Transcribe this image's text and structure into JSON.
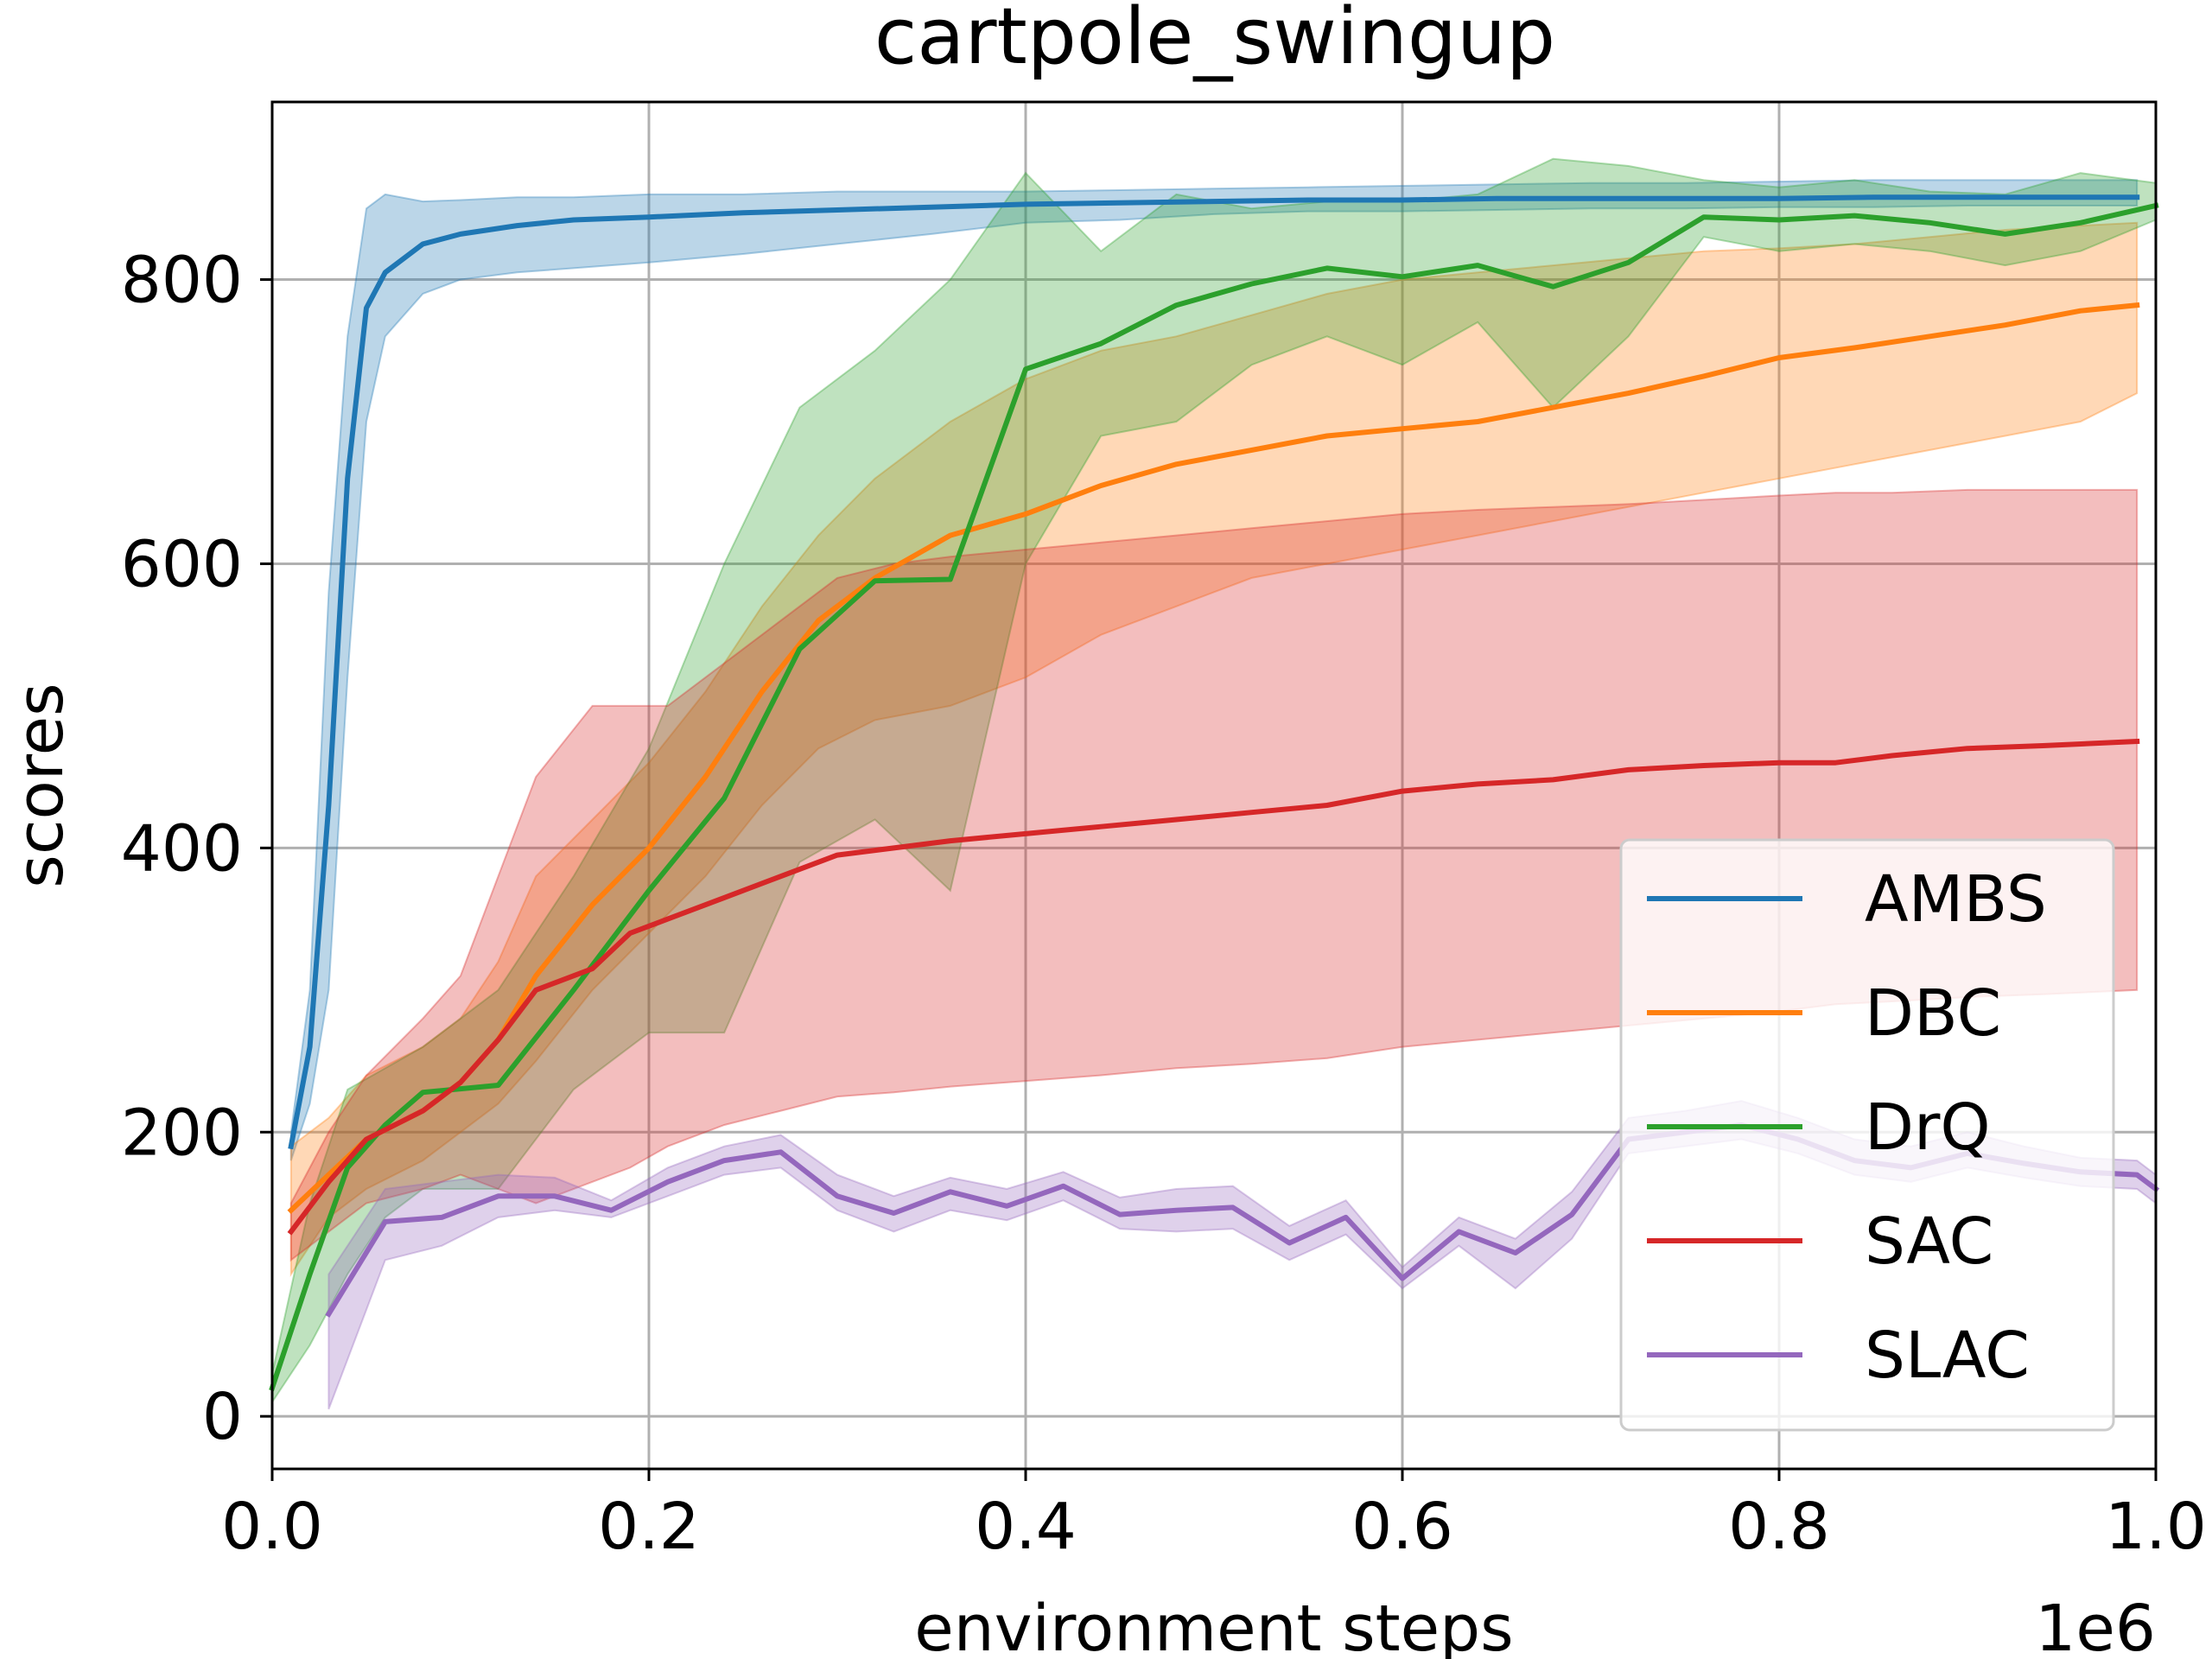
{
  "chart_data": {
    "type": "line",
    "title": "cartpole_swingup",
    "xlabel": "environment steps",
    "ylabel": "scores",
    "x_offset_label": "1e6",
    "xlim": [
      0.0,
      1.0
    ],
    "ylim": [
      -37,
      925
    ],
    "x_ticks": [
      0.0,
      0.2,
      0.4,
      0.6,
      0.8,
      1.0
    ],
    "x_tick_labels": [
      "0.0",
      "0.2",
      "0.4",
      "0.6",
      "0.8",
      "1.0"
    ],
    "y_ticks": [
      0,
      200,
      400,
      600,
      800
    ],
    "y_tick_labels": [
      "0",
      "200",
      "400",
      "600",
      "800"
    ],
    "grid": true,
    "legend_position": "lower-right",
    "series": [
      {
        "name": "AMBS",
        "color": "#1f77b4",
        "x": [
          0.01,
          0.02,
          0.03,
          0.04,
          0.05,
          0.06,
          0.08,
          0.1,
          0.13,
          0.16,
          0.2,
          0.25,
          0.3,
          0.35,
          0.4,
          0.45,
          0.5,
          0.55,
          0.6,
          0.65,
          0.7,
          0.75,
          0.8,
          0.85,
          0.9,
          0.95,
          0.99
        ],
        "y": [
          190,
          260,
          430,
          660,
          780,
          805,
          825,
          832,
          838,
          842,
          844,
          847,
          849,
          851,
          853,
          854,
          855,
          856,
          856,
          857,
          857,
          857,
          857,
          858,
          858,
          858,
          858
        ],
        "lower": [
          180,
          220,
          300,
          520,
          700,
          760,
          790,
          800,
          805,
          808,
          812,
          818,
          825,
          832,
          840,
          842,
          846,
          848,
          848,
          849,
          850,
          850,
          851,
          851,
          852,
          852,
          852
        ],
        "upper": [
          200,
          300,
          580,
          760,
          850,
          860,
          855,
          856,
          858,
          858,
          860,
          860,
          862,
          862,
          862,
          863,
          864,
          865,
          866,
          867,
          868,
          868,
          869,
          870,
          870,
          870,
          870
        ]
      },
      {
        "name": "DBC",
        "color": "#ff7f0e",
        "x": [
          0.01,
          0.03,
          0.05,
          0.08,
          0.1,
          0.12,
          0.14,
          0.17,
          0.2,
          0.23,
          0.26,
          0.29,
          0.32,
          0.36,
          0.4,
          0.44,
          0.48,
          0.52,
          0.56,
          0.6,
          0.64,
          0.68,
          0.72,
          0.76,
          0.8,
          0.84,
          0.88,
          0.92,
          0.96,
          0.99
        ],
        "y": [
          145,
          170,
          195,
          215,
          235,
          265,
          310,
          360,
          400,
          450,
          510,
          560,
          590,
          620,
          635,
          655,
          670,
          680,
          690,
          695,
          700,
          710,
          720,
          732,
          745,
          752,
          760,
          768,
          778,
          782
        ],
        "lower": [
          100,
          140,
          160,
          180,
          200,
          220,
          250,
          300,
          340,
          380,
          430,
          470,
          490,
          500,
          520,
          550,
          570,
          590,
          600,
          610,
          620,
          630,
          640,
          650,
          660,
          670,
          680,
          690,
          700,
          720
        ],
        "upper": [
          190,
          210,
          240,
          260,
          280,
          320,
          380,
          420,
          460,
          510,
          570,
          620,
          660,
          700,
          730,
          750,
          760,
          775,
          790,
          800,
          805,
          810,
          815,
          820,
          822,
          825,
          830,
          835,
          838,
          840
        ]
      },
      {
        "name": "DrQ",
        "color": "#2ca02c",
        "x": [
          0.0,
          0.02,
          0.04,
          0.06,
          0.08,
          0.12,
          0.16,
          0.2,
          0.24,
          0.28,
          0.32,
          0.36,
          0.4,
          0.44,
          0.48,
          0.52,
          0.56,
          0.6,
          0.64,
          0.68,
          0.72,
          0.76,
          0.8,
          0.84,
          0.88,
          0.92,
          0.96,
          1.0
        ],
        "y": [
          20,
          100,
          175,
          205,
          228,
          233,
          300,
          370,
          435,
          540,
          588,
          589,
          737,
          755,
          782,
          797,
          808,
          802,
          810,
          795,
          812,
          844,
          842,
          845,
          840,
          832,
          840,
          852
        ],
        "lower": [
          10,
          50,
          100,
          140,
          160,
          160,
          230,
          270,
          270,
          390,
          420,
          370,
          600,
          690,
          700,
          740,
          760,
          740,
          770,
          710,
          760,
          830,
          820,
          825,
          820,
          810,
          820,
          842
        ],
        "upper": [
          30,
          150,
          230,
          245,
          260,
          300,
          380,
          470,
          600,
          710,
          750,
          800,
          875,
          820,
          860,
          850,
          855,
          855,
          860,
          885,
          880,
          870,
          865,
          870,
          862,
          860,
          875,
          868
        ]
      },
      {
        "name": "SAC",
        "color": "#d62728",
        "x": [
          0.01,
          0.03,
          0.05,
          0.08,
          0.1,
          0.12,
          0.14,
          0.17,
          0.19,
          0.21,
          0.24,
          0.27,
          0.3,
          0.33,
          0.36,
          0.4,
          0.44,
          0.48,
          0.52,
          0.56,
          0.6,
          0.64,
          0.68,
          0.72,
          0.76,
          0.8,
          0.83,
          0.86,
          0.9,
          0.94,
          0.99
        ],
        "y": [
          130,
          165,
          195,
          215,
          235,
          265,
          300,
          315,
          340,
          350,
          365,
          380,
          395,
          400,
          405,
          410,
          415,
          420,
          425,
          430,
          440,
          445,
          448,
          455,
          458,
          460,
          460,
          465,
          470,
          472,
          475
        ],
        "lower": [
          110,
          130,
          150,
          160,
          170,
          160,
          150,
          165,
          175,
          190,
          205,
          215,
          225,
          228,
          232,
          236,
          240,
          245,
          248,
          252,
          260,
          265,
          270,
          275,
          280,
          285,
          290,
          292,
          295,
          297,
          300
        ],
        "upper": [
          150,
          200,
          240,
          280,
          310,
          380,
          450,
          500,
          500,
          500,
          530,
          560,
          590,
          600,
          605,
          610,
          615,
          620,
          625,
          630,
          635,
          638,
          640,
          642,
          645,
          648,
          650,
          650,
          652,
          652,
          652
        ]
      },
      {
        "name": "SLAC",
        "color": "#9467bd",
        "x": [
          0.03,
          0.06,
          0.09,
          0.12,
          0.15,
          0.18,
          0.21,
          0.24,
          0.27,
          0.3,
          0.33,
          0.36,
          0.39,
          0.42,
          0.45,
          0.48,
          0.51,
          0.54,
          0.57,
          0.6,
          0.63,
          0.66,
          0.69,
          0.72,
          0.75,
          0.78,
          0.81,
          0.84,
          0.87,
          0.9,
          0.93,
          0.96,
          0.99,
          1.0
        ],
        "y": [
          72,
          137,
          140,
          155,
          155,
          145,
          165,
          180,
          186,
          155,
          143,
          158,
          148,
          162,
          142,
          145,
          147,
          122,
          140,
          97,
          130,
          115,
          142,
          195,
          200,
          205,
          195,
          180,
          175,
          185,
          178,
          172,
          170,
          160
        ],
        "lower": [
          5,
          110,
          120,
          140,
          145,
          140,
          155,
          170,
          175,
          145,
          130,
          145,
          138,
          152,
          132,
          130,
          132,
          110,
          128,
          90,
          120,
          90,
          125,
          185,
          190,
          195,
          185,
          170,
          165,
          175,
          168,
          162,
          160,
          150
        ],
        "upper": [
          100,
          160,
          165,
          170,
          168,
          152,
          175,
          190,
          198,
          170,
          155,
          168,
          160,
          172,
          154,
          160,
          162,
          134,
          152,
          105,
          140,
          125,
          158,
          210,
          215,
          222,
          210,
          195,
          190,
          200,
          190,
          182,
          180,
          170
        ]
      }
    ]
  }
}
